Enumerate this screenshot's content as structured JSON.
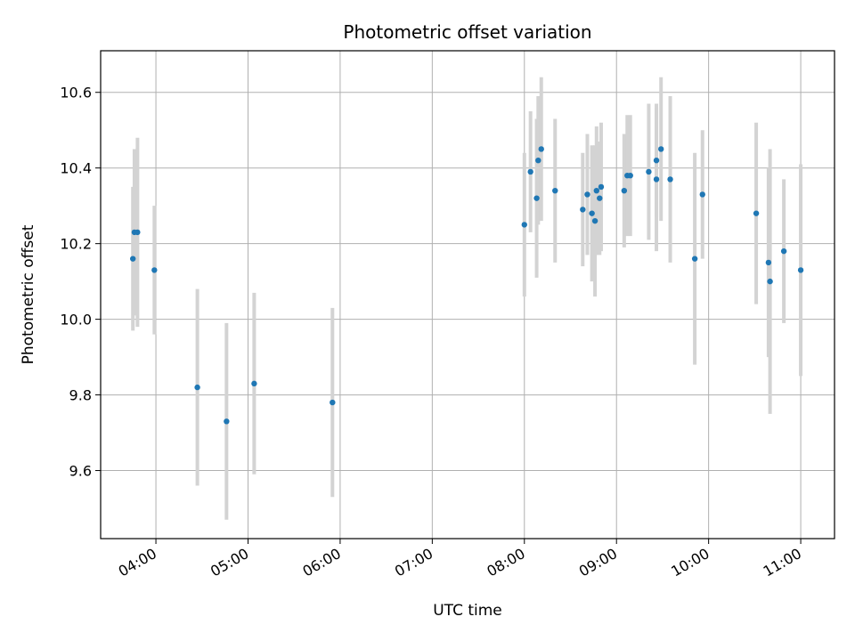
{
  "chart_data": {
    "type": "scatter",
    "title": "Photometric offset variation",
    "xlabel": "UTC time",
    "ylabel": "Photometric offset",
    "x_ticks": [
      "04:00",
      "05:00",
      "06:00",
      "07:00",
      "08:00",
      "09:00",
      "10:00",
      "11:00"
    ],
    "y_ticks": [
      "9.6",
      "9.8",
      "10.0",
      "10.2",
      "10.4",
      "10.6"
    ],
    "xlim": [
      "03:24",
      "11:22"
    ],
    "ylim": [
      9.42,
      10.71
    ],
    "grid": true,
    "point_color": "#1f77b4",
    "errorbar_color": "#d3d3d3",
    "points": [
      {
        "x": "03:45",
        "y": 10.16,
        "err": 0.19
      },
      {
        "x": "03:46",
        "y": 10.23,
        "err": 0.22
      },
      {
        "x": "03:48",
        "y": 10.23,
        "err": 0.25
      },
      {
        "x": "03:59",
        "y": 10.13,
        "err": 0.17
      },
      {
        "x": "04:27",
        "y": 9.82,
        "err": 0.26
      },
      {
        "x": "04:46",
        "y": 9.73,
        "err": 0.26
      },
      {
        "x": "05:04",
        "y": 9.83,
        "err": 0.24
      },
      {
        "x": "05:55",
        "y": 9.78,
        "err": 0.25
      },
      {
        "x": "08:00",
        "y": 10.25,
        "err": 0.19
      },
      {
        "x": "08:04",
        "y": 10.39,
        "err": 0.16
      },
      {
        "x": "08:08",
        "y": 10.32,
        "err": 0.21
      },
      {
        "x": "08:09",
        "y": 10.42,
        "err": 0.17
      },
      {
        "x": "08:11",
        "y": 10.45,
        "err": 0.19
      },
      {
        "x": "08:20",
        "y": 10.34,
        "err": 0.19
      },
      {
        "x": "08:38",
        "y": 10.29,
        "err": 0.15
      },
      {
        "x": "08:41",
        "y": 10.33,
        "err": 0.16
      },
      {
        "x": "08:44",
        "y": 10.28,
        "err": 0.18
      },
      {
        "x": "08:46",
        "y": 10.26,
        "err": 0.2
      },
      {
        "x": "08:47",
        "y": 10.34,
        "err": 0.17
      },
      {
        "x": "08:49",
        "y": 10.32,
        "err": 0.15
      },
      {
        "x": "08:50",
        "y": 10.35,
        "err": 0.17
      },
      {
        "x": "09:05",
        "y": 10.34,
        "err": 0.15
      },
      {
        "x": "09:07",
        "y": 10.38,
        "err": 0.16
      },
      {
        "x": "09:09",
        "y": 10.38,
        "err": 0.16
      },
      {
        "x": "09:21",
        "y": 10.39,
        "err": 0.18
      },
      {
        "x": "09:26",
        "y": 10.37,
        "err": 0.19
      },
      {
        "x": "09:26",
        "y": 10.42,
        "err": 0.15
      },
      {
        "x": "09:29",
        "y": 10.45,
        "err": 0.19
      },
      {
        "x": "09:35",
        "y": 10.37,
        "err": 0.22
      },
      {
        "x": "09:51",
        "y": 10.16,
        "err": 0.28
      },
      {
        "x": "09:56",
        "y": 10.33,
        "err": 0.17
      },
      {
        "x": "10:31",
        "y": 10.28,
        "err": 0.24
      },
      {
        "x": "10:39",
        "y": 10.15,
        "err": 0.25
      },
      {
        "x": "10:40",
        "y": 10.1,
        "err": 0.35
      },
      {
        "x": "10:49",
        "y": 10.18,
        "err": 0.19
      },
      {
        "x": "11:00",
        "y": 10.13,
        "err": 0.28
      }
    ]
  }
}
